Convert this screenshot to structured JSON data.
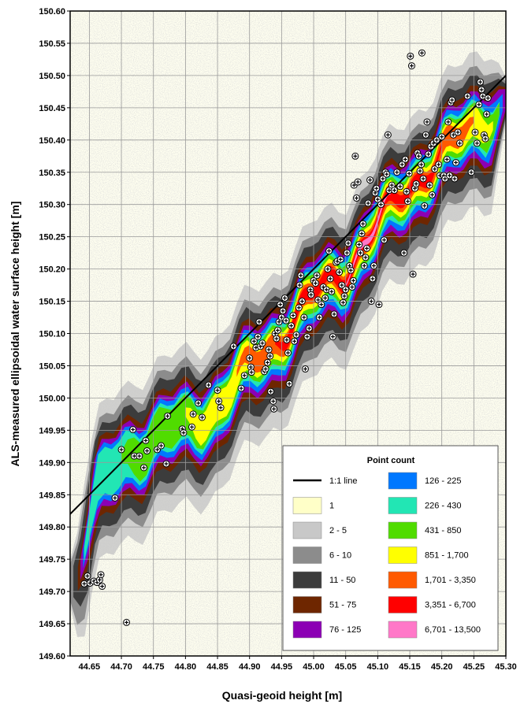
{
  "chart_data": {
    "type": "heatmap",
    "title": "",
    "xlabel": "Quasi-geoid height [m]",
    "ylabel": "ALS-measured ellipsoidal water surface height [m]",
    "xlim": [
      44.62,
      45.3
    ],
    "ylim": [
      149.6,
      150.6
    ],
    "x_ticks": [
      "44.65",
      "44.70",
      "44.75",
      "44.80",
      "44.85",
      "44.90",
      "44.95",
      "45.00",
      "45.05",
      "45.10",
      "45.15",
      "45.20",
      "45.25",
      "45.30"
    ],
    "y_ticks": [
      "149.60",
      "149.65",
      "149.70",
      "149.75",
      "149.80",
      "149.85",
      "149.90",
      "149.95",
      "150.00",
      "150.05",
      "150.10",
      "150.15",
      "150.20",
      "150.25",
      "150.30",
      "150.35",
      "150.40",
      "150.45",
      "150.50",
      "150.55",
      "150.60"
    ],
    "grid": true,
    "reference_line": {
      "name": "1:1 line",
      "x": [
        44.62,
        45.3
      ],
      "y": [
        149.82,
        150.5
      ],
      "color": "#000000"
    },
    "density_ridge": {
      "x": [
        44.63,
        44.66,
        44.7,
        44.75,
        44.8,
        44.85,
        44.9,
        44.95,
        45.0,
        45.05,
        45.1,
        45.15,
        45.2,
        45.25,
        45.3
      ],
      "y": [
        149.72,
        149.85,
        149.91,
        149.94,
        149.96,
        149.99,
        150.05,
        150.1,
        150.16,
        150.2,
        150.27,
        150.33,
        150.38,
        150.42,
        150.46
      ]
    },
    "legend": {
      "title": "Point count",
      "position": "bottom-right",
      "columns": [
        [
          {
            "label": "1:1 line",
            "type": "line",
            "color": "#000000"
          },
          {
            "label": "1",
            "color": "#ffffc8"
          },
          {
            "label": "2 - 5",
            "color": "#c8c8c8"
          },
          {
            "label": "6 - 10",
            "color": "#8c8c8c"
          },
          {
            "label": "11 - 50",
            "color": "#3c3c3c"
          },
          {
            "label": "51 - 75",
            "color": "#6e2600"
          },
          {
            "label": "76 - 125",
            "color": "#8c00b4"
          }
        ],
        [
          {
            "label": "126 - 225",
            "color": "#0078ff"
          },
          {
            "label": "226 - 430",
            "color": "#22e6b4"
          },
          {
            "label": "431 - 850",
            "color": "#50dc00"
          },
          {
            "label": "851 - 1,700",
            "color": "#ffff00"
          },
          {
            "label": "1,701 - 3,350",
            "color": "#ff5a00"
          },
          {
            "label": "3,351 - 6,700",
            "color": "#ff0000"
          },
          {
            "label": "6,701 - 13,500",
            "color": "#ff78c8"
          }
        ]
      ]
    },
    "markers": [
      [
        44.642,
        149.712
      ],
      [
        44.647,
        149.724
      ],
      [
        44.651,
        149.713
      ],
      [
        44.657,
        149.716
      ],
      [
        44.662,
        149.714
      ],
      [
        44.666,
        149.718
      ],
      [
        44.668,
        149.726
      ],
      [
        44.67,
        149.708
      ],
      [
        44.69,
        149.845
      ],
      [
        44.7,
        149.92
      ],
      [
        44.708,
        149.652
      ],
      [
        44.718,
        149.951
      ],
      [
        44.72,
        149.91
      ],
      [
        44.728,
        149.91
      ],
      [
        44.735,
        149.892
      ],
      [
        44.738,
        149.934
      ],
      [
        44.74,
        149.918
      ],
      [
        44.756,
        149.92
      ],
      [
        44.762,
        149.926
      ],
      [
        44.77,
        149.898
      ],
      [
        44.772,
        149.972
      ],
      [
        44.795,
        149.952
      ],
      [
        44.797,
        149.946
      ],
      [
        44.81,
        149.955
      ],
      [
        44.812,
        149.975
      ],
      [
        44.82,
        149.992
      ],
      [
        44.826,
        149.97
      ],
      [
        44.836,
        150.02
      ],
      [
        44.85,
        150.012
      ],
      [
        44.852,
        149.995
      ],
      [
        44.855,
        149.985
      ],
      [
        44.875,
        150.08
      ],
      [
        44.887,
        150.015
      ],
      [
        44.892,
        150.035
      ],
      [
        44.9,
        150.062
      ],
      [
        44.902,
        150.048
      ],
      [
        44.903,
        150.04
      ],
      [
        44.907,
        150.088
      ],
      [
        44.91,
        150.078
      ],
      [
        44.913,
        150.095
      ],
      [
        44.915,
        150.118
      ],
      [
        44.917,
        150.08
      ],
      [
        44.92,
        150.085
      ],
      [
        44.923,
        150.041
      ],
      [
        44.925,
        150.045
      ],
      [
        44.928,
        150.055
      ],
      [
        44.93,
        150.075
      ],
      [
        44.932,
        150.065
      ],
      [
        44.933,
        150.01
      ],
      [
        44.937,
        149.995
      ],
      [
        44.938,
        149.983
      ],
      [
        44.94,
        150.1
      ],
      [
        44.942,
        150.092
      ],
      [
        44.944,
        150.105
      ],
      [
        44.946,
        150.118
      ],
      [
        44.948,
        150.145
      ],
      [
        44.95,
        150.125
      ],
      [
        44.952,
        150.135
      ],
      [
        44.955,
        150.155
      ],
      [
        44.957,
        150.12
      ],
      [
        44.958,
        150.09
      ],
      [
        44.96,
        150.07
      ],
      [
        44.962,
        150.022
      ],
      [
        44.965,
        150.112
      ],
      [
        44.968,
        150.128
      ],
      [
        44.97,
        150.088
      ],
      [
        44.973,
        150.098
      ],
      [
        44.977,
        150.14
      ],
      [
        44.978,
        150.175
      ],
      [
        44.98,
        150.19
      ],
      [
        44.982,
        150.15
      ],
      [
        44.985,
        150.125
      ],
      [
        44.987,
        150.045
      ],
      [
        44.99,
        150.095
      ],
      [
        44.993,
        150.108
      ],
      [
        44.995,
        150.168
      ],
      [
        44.996,
        150.16
      ],
      [
        45.0,
        150.182
      ],
      [
        45.003,
        150.178
      ],
      [
        45.005,
        150.19
      ],
      [
        45.007,
        150.152
      ],
      [
        45.009,
        150.125
      ],
      [
        45.012,
        150.145
      ],
      [
        45.015,
        150.172
      ],
      [
        45.018,
        150.155
      ],
      [
        45.02,
        150.168
      ],
      [
        45.022,
        150.2
      ],
      [
        45.024,
        150.228
      ],
      [
        45.026,
        150.185
      ],
      [
        45.028,
        150.165
      ],
      [
        45.03,
        150.095
      ],
      [
        45.032,
        150.13
      ],
      [
        45.035,
        150.21
      ],
      [
        45.037,
        150.212
      ],
      [
        45.04,
        150.195
      ],
      [
        45.042,
        150.215
      ],
      [
        45.044,
        150.175
      ],
      [
        45.046,
        150.148
      ],
      [
        45.048,
        150.158
      ],
      [
        45.05,
        150.168
      ],
      [
        45.052,
        150.225
      ],
      [
        45.054,
        150.24
      ],
      [
        45.056,
        150.205
      ],
      [
        45.058,
        150.198
      ],
      [
        45.06,
        150.172
      ],
      [
        45.062,
        150.182
      ],
      [
        45.063,
        150.33
      ],
      [
        45.065,
        150.375
      ],
      [
        45.067,
        150.31
      ],
      [
        45.069,
        150.335
      ],
      [
        45.071,
        150.238
      ],
      [
        45.073,
        150.225
      ],
      [
        45.075,
        150.255
      ],
      [
        45.077,
        150.27
      ],
      [
        45.079,
        150.205
      ],
      [
        45.081,
        150.218
      ],
      [
        45.083,
        150.232
      ],
      [
        45.085,
        150.302
      ],
      [
        45.088,
        150.338
      ],
      [
        45.09,
        150.15
      ],
      [
        45.092,
        150.185
      ],
      [
        45.094,
        150.205
      ],
      [
        45.096,
        150.318
      ],
      [
        45.098,
        150.325
      ],
      [
        45.1,
        150.308
      ],
      [
        45.102,
        150.145
      ],
      [
        45.105,
        150.3
      ],
      [
        45.108,
        150.34
      ],
      [
        45.11,
        150.245
      ],
      [
        45.112,
        150.35
      ],
      [
        45.114,
        150.347
      ],
      [
        45.116,
        150.408
      ],
      [
        45.118,
        150.322
      ],
      [
        45.122,
        150.33
      ],
      [
        45.126,
        150.322
      ],
      [
        45.13,
        150.35
      ],
      [
        45.135,
        150.328
      ],
      [
        45.138,
        150.362
      ],
      [
        45.141,
        150.225
      ],
      [
        45.143,
        150.37
      ],
      [
        45.145,
        150.32
      ],
      [
        45.147,
        150.305
      ],
      [
        45.149,
        150.348
      ],
      [
        45.151,
        150.53
      ],
      [
        45.153,
        150.515
      ],
      [
        45.155,
        150.192
      ],
      [
        45.158,
        150.325
      ],
      [
        45.16,
        150.332
      ],
      [
        45.162,
        150.38
      ],
      [
        45.164,
        150.375
      ],
      [
        45.166,
        150.352
      ],
      [
        45.168,
        150.362
      ],
      [
        45.169,
        150.535
      ],
      [
        45.171,
        150.34
      ],
      [
        45.173,
        150.298
      ],
      [
        45.175,
        150.408
      ],
      [
        45.177,
        150.428
      ],
      [
        45.179,
        150.378
      ],
      [
        45.181,
        150.33
      ],
      [
        45.183,
        150.39
      ],
      [
        45.185,
        150.315
      ],
      [
        45.187,
        150.395
      ],
      [
        45.189,
        150.355
      ],
      [
        45.192,
        150.4
      ],
      [
        45.195,
        150.362
      ],
      [
        45.197,
        150.345
      ],
      [
        45.2,
        150.405
      ],
      [
        45.203,
        150.345
      ],
      [
        45.205,
        150.34
      ],
      [
        45.208,
        150.37
      ],
      [
        45.21,
        150.428
      ],
      [
        45.212,
        150.345
      ],
      [
        45.214,
        150.458
      ],
      [
        45.216,
        150.462
      ],
      [
        45.218,
        150.408
      ],
      [
        45.22,
        150.34
      ],
      [
        45.222,
        150.365
      ],
      [
        45.225,
        150.412
      ],
      [
        45.228,
        150.395
      ],
      [
        45.24,
        150.468
      ],
      [
        45.246,
        150.35
      ],
      [
        45.252,
        150.412
      ],
      [
        45.255,
        150.395
      ],
      [
        45.258,
        150.455
      ],
      [
        45.26,
        150.49
      ],
      [
        45.262,
        150.478
      ],
      [
        45.264,
        150.468
      ],
      [
        45.266,
        150.408
      ],
      [
        45.268,
        150.402
      ],
      [
        45.27,
        150.44
      ],
      [
        45.272,
        150.465
      ]
    ]
  }
}
